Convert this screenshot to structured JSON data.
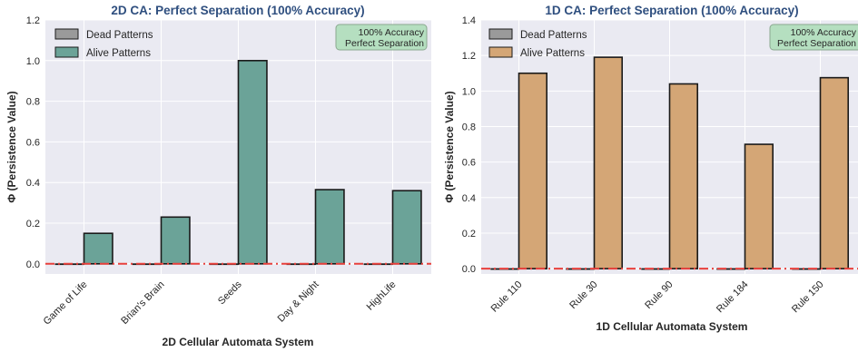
{
  "colors": {
    "title": "#2f4f7f",
    "plot_bg": "#eaeaf2",
    "grid": "#ffffff",
    "dead": "#9a9a9a",
    "alive_2d": "#6ba398",
    "alive_1d": "#d4a676",
    "bar_edge": "#1a1a1a",
    "zero_line": "#e8403c",
    "annotation_bg": "#b5dfc0",
    "annotation_edge": "#8aa88f",
    "text": "#262626"
  },
  "chart_data": [
    {
      "type": "bar",
      "title": "2D CA: Perfect Separation (100% Accuracy)",
      "xlabel": "2D Cellular Automata System",
      "ylabel": "Φ (Persistence Value)",
      "categories": [
        "Game of Life",
        "Brian's Brain",
        "Seeds",
        "Day & Night",
        "HighLife"
      ],
      "series": [
        {
          "name": "Dead Patterns",
          "values": [
            0,
            0,
            0,
            0,
            0
          ]
        },
        {
          "name": "Alive Patterns",
          "values": [
            0.15,
            0.23,
            1.0,
            0.365,
            0.36
          ]
        }
      ],
      "ylim": [
        -0.05,
        1.2
      ],
      "yticks": [
        "0.0",
        "0.2",
        "0.4",
        "0.6",
        "0.8",
        "1.0",
        "1.2"
      ],
      "reference_line": 0,
      "annotation": [
        "100% Accuracy",
        "Perfect Separation"
      ],
      "legend": "top-left",
      "grid": true
    },
    {
      "type": "bar",
      "title": "1D CA: Perfect Separation (100% Accuracy)",
      "xlabel": "1D Cellular Automata System",
      "ylabel": "Φ (Persistence Value)",
      "categories": [
        "Rule 110",
        "Rule 30",
        "Rule 90",
        "Rule 184",
        "Rule 150"
      ],
      "series": [
        {
          "name": "Dead Patterns",
          "values": [
            0,
            0,
            0,
            0,
            0
          ]
        },
        {
          "name": "Alive Patterns",
          "values": [
            1.1,
            1.19,
            1.04,
            0.7,
            1.075
          ]
        }
      ],
      "ylim": [
        -0.03,
        1.4
      ],
      "yticks": [
        "0.0",
        "0.2",
        "0.4",
        "0.6",
        "0.8",
        "1.0",
        "1.2",
        "1.4"
      ],
      "reference_line": 0,
      "annotation": [
        "100% Accuracy",
        "Perfect Separation"
      ],
      "legend": "top-left",
      "grid": true
    }
  ]
}
